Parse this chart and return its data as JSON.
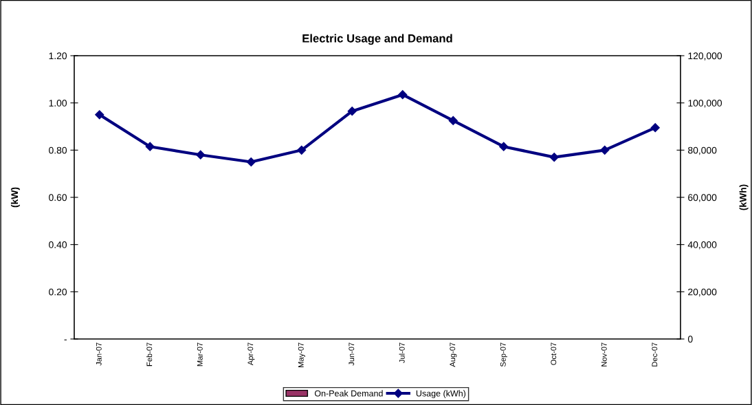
{
  "chart_data": {
    "type": "bar",
    "title": "Electric Usage and Demand",
    "ylabel": "(kW)",
    "y2label": "(kWh)",
    "categories": [
      "Jan-07",
      "Feb-07",
      "Mar-07",
      "Apr-07",
      "May-07",
      "Jun-07",
      "Jul-07",
      "Aug-07",
      "Sep-07",
      "Oct-07",
      "Nov-07",
      "Dec-07"
    ],
    "series": [
      {
        "name": "On-Peak Demand",
        "color": "#993366",
        "values": [
          null,
          null,
          null,
          null,
          null,
          null,
          null,
          null,
          null,
          null,
          null,
          null
        ]
      },
      {
        "name": "Usage (kWh)",
        "type": "line",
        "axis": "y2",
        "color": "#000080",
        "marker": "diamond",
        "line_style": "solid",
        "values": [
          95000,
          81500,
          78000,
          75000,
          80000,
          96500,
          103500,
          92500,
          81500,
          77000,
          80000,
          89500
        ]
      }
    ],
    "ylim": [
      0,
      1.2
    ],
    "yticks": [
      {
        "value": 0,
        "label": "-"
      },
      {
        "value": 0.2,
        "label": "0.20"
      },
      {
        "value": 0.4,
        "label": "0.40"
      },
      {
        "value": 0.6,
        "label": "0.60"
      },
      {
        "value": 0.8,
        "label": "0.80"
      },
      {
        "value": 1.0,
        "label": "1.00"
      },
      {
        "value": 1.2,
        "label": "1.20"
      }
    ],
    "y2lim": [
      0,
      120000
    ],
    "y2ticks": [
      0,
      {
        "value": 20000,
        "label": "20,000"
      },
      {
        "value": 40000,
        "label": "40,000"
      },
      {
        "value": 60000,
        "label": "60,000"
      },
      {
        "value": 80000,
        "label": "80,000"
      },
      {
        "value": 100000,
        "label": "100,000"
      },
      {
        "value": 120000,
        "label": "120,000"
      }
    ],
    "grid": false,
    "legend": "bottom"
  }
}
